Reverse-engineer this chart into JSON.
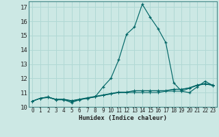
{
  "xlabel": "Humidex (Indice chaleur)",
  "background_color": "#cce8e4",
  "grid_color": "#b0d8d4",
  "line_color": "#006666",
  "x_data": [
    0,
    1,
    2,
    3,
    4,
    5,
    6,
    7,
    8,
    9,
    10,
    11,
    12,
    13,
    14,
    15,
    16,
    17,
    18,
    19,
    20,
    21,
    22,
    23
  ],
  "series": [
    [
      10.4,
      10.6,
      10.7,
      10.5,
      10.5,
      10.3,
      10.5,
      10.6,
      10.7,
      11.4,
      12.0,
      13.3,
      15.1,
      15.6,
      17.2,
      16.3,
      15.5,
      14.5,
      11.7,
      11.1,
      11.0,
      11.4,
      11.8,
      11.5
    ],
    [
      10.4,
      10.6,
      10.7,
      10.5,
      10.5,
      10.4,
      10.5,
      10.6,
      10.7,
      10.8,
      10.9,
      11.0,
      11.0,
      11.0,
      11.0,
      11.0,
      11.0,
      11.1,
      11.1,
      11.1,
      11.3,
      11.5,
      11.6,
      11.5
    ],
    [
      10.4,
      10.6,
      10.65,
      10.52,
      10.52,
      10.42,
      10.52,
      10.62,
      10.72,
      10.82,
      10.92,
      11.02,
      11.02,
      11.12,
      11.12,
      11.12,
      11.12,
      11.12,
      11.22,
      11.22,
      11.32,
      11.52,
      11.62,
      11.52
    ],
    [
      10.4,
      10.6,
      10.68,
      10.54,
      10.54,
      10.44,
      10.54,
      10.64,
      10.74,
      10.84,
      10.94,
      11.04,
      11.04,
      11.14,
      11.14,
      11.14,
      11.14,
      11.14,
      11.24,
      11.24,
      11.34,
      11.54,
      11.64,
      11.54
    ]
  ],
  "ylim": [
    10,
    17.4
  ],
  "yticks": [
    10,
    11,
    12,
    13,
    14,
    15,
    16,
    17
  ],
  "xticks": [
    0,
    1,
    2,
    3,
    4,
    5,
    6,
    7,
    8,
    9,
    10,
    11,
    12,
    13,
    14,
    15,
    16,
    17,
    18,
    19,
    20,
    21,
    22,
    23
  ]
}
